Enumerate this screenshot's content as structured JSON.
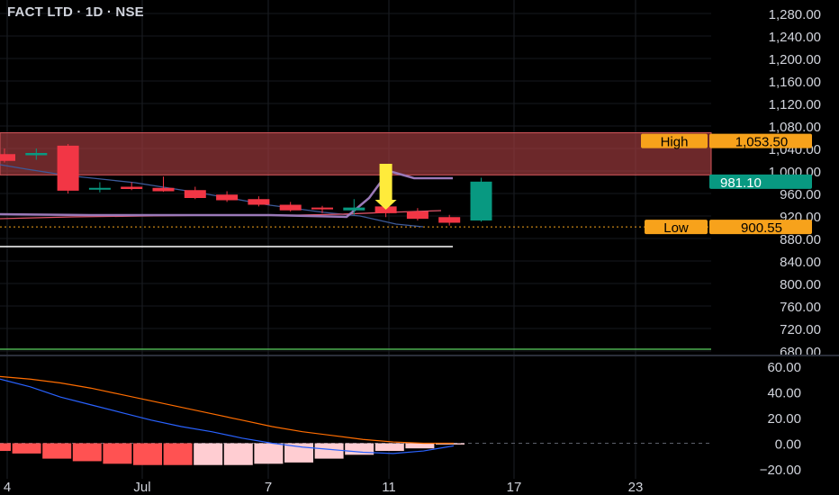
{
  "header": {
    "title": "FACT LTD · 1D · NSE"
  },
  "chart_data": [
    {
      "type": "candlestick",
      "symbol": "FACT LTD",
      "interval": "1D",
      "exchange": "NSE",
      "y_ticks": [
        "1,280.00",
        "1,240.00",
        "1,200.00",
        "1,160.00",
        "1,120.00",
        "1,080.00",
        "1,040.00",
        "1,000.00",
        "960.00",
        "920.00",
        "880.00",
        "840.00",
        "800.00",
        "760.00",
        "720.00",
        "680.00"
      ],
      "ylim": [
        680,
        1290
      ],
      "x_ticks": [
        "4",
        "Jul",
        "7",
        "11",
        "17",
        "23"
      ],
      "resistance_zone": {
        "low": 993,
        "high": 1068,
        "color": "#a63d40"
      },
      "high_label": "High",
      "high_value": "1,053.50",
      "low_label": "Low",
      "low_value": "900.55",
      "last_price": "981.10",
      "colors": {
        "up": "#089981",
        "down": "#f23645",
        "marker_arrow": "#ffeb3b",
        "label_bg": "#f7a21b",
        "last_price_bg": "#089981",
        "green_line": "#4caf50"
      },
      "candles": [
        {
          "o": 1030,
          "h": 1040,
          "l": 1015,
          "c": 1018
        },
        {
          "o": 1028,
          "h": 1040,
          "l": 1020,
          "c": 1032
        },
        {
          "o": 1045,
          "h": 1048,
          "l": 960,
          "c": 965
        },
        {
          "o": 969,
          "h": 980,
          "l": 962,
          "c": 970
        },
        {
          "o": 972,
          "h": 980,
          "l": 966,
          "c": 968
        },
        {
          "o": 970,
          "h": 990,
          "l": 963,
          "c": 964
        },
        {
          "o": 966,
          "h": 972,
          "l": 950,
          "c": 952
        },
        {
          "o": 958,
          "h": 964,
          "l": 945,
          "c": 948
        },
        {
          "o": 950,
          "h": 955,
          "l": 937,
          "c": 940
        },
        {
          "o": 940,
          "h": 945,
          "l": 928,
          "c": 930
        },
        {
          "o": 935,
          "h": 938,
          "l": 925,
          "c": 932
        },
        {
          "o": 930,
          "h": 950,
          "l": 922,
          "c": 935
        },
        {
          "o": 937,
          "h": 940,
          "l": 918,
          "c": 925
        },
        {
          "o": 928,
          "h": 934,
          "l": 912,
          "c": 915
        },
        {
          "o": 918,
          "h": 922,
          "l": 903,
          "c": 908
        },
        {
          "o": 912,
          "h": 988,
          "l": 910,
          "c": 981.1
        }
      ],
      "oscillator": {
        "y_ticks": [
          "60.00",
          "40.00",
          "20.00",
          "0.00",
          "−20.00"
        ],
        "ylim": [
          -22,
          64
        ],
        "histogram": [
          -6,
          -8,
          -12,
          -14,
          -16,
          -17,
          -17,
          -17,
          -17,
          -16,
          -15,
          -12,
          -9,
          -6,
          -4,
          -1
        ],
        "histogram_colors": {
          "falling": "#ff5252",
          "rising": "#ffcdd2"
        },
        "line_a": [
          50,
          44,
          36,
          30,
          24,
          18,
          13,
          9,
          4,
          0,
          -3,
          -5,
          -7,
          -8,
          -6,
          -2
        ],
        "line_b": [
          52,
          50,
          47,
          43,
          38,
          33,
          28,
          23,
          18,
          13,
          9,
          6,
          3,
          1,
          0,
          0
        ],
        "colors": {
          "line_a": "#2962ff",
          "line_b": "#ff6d00"
        }
      }
    }
  ]
}
